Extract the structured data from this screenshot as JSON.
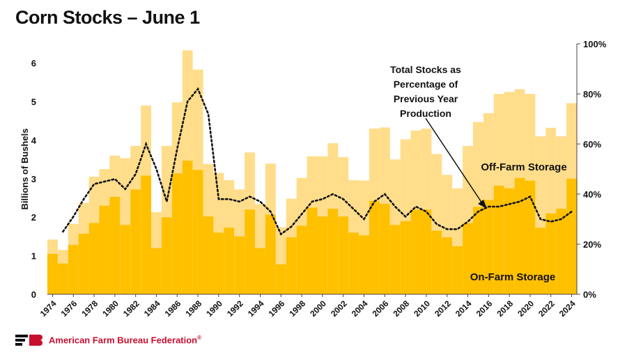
{
  "title": "Corn Stocks – June 1",
  "organization": "American Farm Bureau Federation",
  "organization_mark": "®",
  "colors": {
    "on_farm": "#FFC000",
    "off_farm": "#FFDD8A",
    "line": "#111111",
    "brand": "#C8102E",
    "logo_dark": "#111111"
  },
  "chart_data": {
    "type": "bar",
    "stacked": true,
    "ylabel": "Billions of Bushels",
    "ylim": [
      0,
      6.5
    ],
    "yticks": [
      0,
      1,
      2,
      3,
      4,
      5,
      6
    ],
    "y2lim": [
      0,
      100
    ],
    "y2ticks": [
      "0%",
      "20%",
      "40%",
      "60%",
      "80%",
      "100%"
    ],
    "x": [
      1974,
      1975,
      1976,
      1977,
      1978,
      1979,
      1980,
      1981,
      1982,
      1983,
      1984,
      1985,
      1986,
      1987,
      1988,
      1989,
      1990,
      1991,
      1992,
      1993,
      1994,
      1995,
      1996,
      1997,
      1998,
      1999,
      2000,
      2001,
      2002,
      2003,
      2004,
      2005,
      2006,
      2007,
      2008,
      2009,
      2010,
      2011,
      2012,
      2013,
      2014,
      2015,
      2016,
      2017,
      2018,
      2019,
      2020,
      2021,
      2022,
      2023,
      2024
    ],
    "xtick_labels": [
      "1974",
      "1976",
      "1978",
      "1980",
      "1982",
      "1984",
      "1986",
      "1988",
      "1990",
      "1992",
      "1994",
      "1996",
      "1998",
      "2000",
      "2002",
      "2004",
      "2006",
      "2008",
      "2010",
      "2012",
      "2014",
      "2016",
      "2018",
      "2020",
      "2022",
      "2024"
    ],
    "series": [
      {
        "name": "On-Farm Storage",
        "values": [
          1.05,
          0.8,
          1.28,
          1.57,
          1.85,
          2.3,
          2.53,
          1.8,
          2.72,
          3.08,
          1.2,
          2.0,
          3.14,
          3.47,
          3.23,
          2.02,
          1.6,
          1.73,
          1.5,
          2.2,
          1.2,
          2.07,
          0.78,
          1.48,
          1.78,
          2.25,
          2.02,
          2.22,
          2.02,
          1.6,
          1.53,
          2.42,
          2.35,
          1.8,
          1.9,
          2.2,
          2.2,
          1.65,
          1.48,
          1.25,
          1.85,
          2.27,
          2.45,
          2.82,
          2.75,
          3.02,
          2.95,
          1.73,
          2.1,
          2.22,
          3.0
        ]
      },
      {
        "name": "Off-Farm Storage",
        "values": [
          0.37,
          0.35,
          0.55,
          0.8,
          1.2,
          0.95,
          1.07,
          1.73,
          1.13,
          1.82,
          0.93,
          1.85,
          1.84,
          2.86,
          2.6,
          1.36,
          1.55,
          1.23,
          1.22,
          1.48,
          1.14,
          1.32,
          0.96,
          1.0,
          1.24,
          1.33,
          1.56,
          1.7,
          1.54,
          1.36,
          1.42,
          1.88,
          1.98,
          1.7,
          2.12,
          2.05,
          2.1,
          1.99,
          1.62,
          1.5,
          2.0,
          2.2,
          2.25,
          2.38,
          2.5,
          2.3,
          2.25,
          2.37,
          2.22,
          1.88,
          1.96
        ]
      },
      {
        "name": "Total Stocks as Percentage of Previous Year Production",
        "values": [
          null,
          25,
          31,
          38,
          44,
          45,
          46,
          42,
          48,
          60,
          50,
          37,
          58,
          77,
          82,
          72,
          38,
          38,
          37,
          39,
          37,
          33,
          24,
          27,
          32,
          37,
          38,
          40,
          38,
          34,
          30,
          37,
          40,
          35,
          31,
          35,
          33,
          28,
          26,
          26,
          29,
          33,
          35,
          35,
          36,
          37,
          39,
          30,
          29,
          30,
          33
        ]
      }
    ],
    "annotation": [
      "Total Stocks as",
      "Percentage of",
      "Previous Year",
      "Production"
    ],
    "labels": {
      "off_farm": "Off-Farm Storage",
      "on_farm": "On-Farm Storage"
    }
  }
}
